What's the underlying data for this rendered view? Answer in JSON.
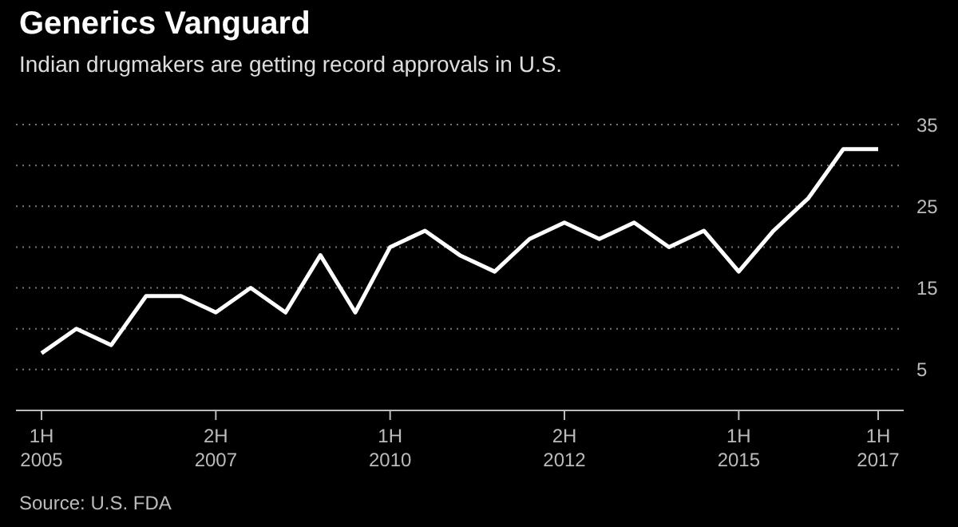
{
  "chart_data": {
    "type": "line",
    "title": "Generics Vanguard",
    "subtitle": "Indian drugmakers are getting record approvals in U.S.",
    "categories": [
      "1H 2005",
      null,
      null,
      null,
      null,
      "2H 2007",
      null,
      null,
      null,
      null,
      "1H 2010",
      null,
      null,
      null,
      null,
      "2H 2012",
      null,
      null,
      null,
      null,
      "1H 2015",
      null,
      null,
      null,
      "1H 2017"
    ],
    "series": [
      {
        "color": "#ffffff",
        "values": [
          7,
          10,
          8,
          14,
          14,
          12,
          15,
          12,
          19,
          12,
          20,
          22,
          19,
          17,
          21,
          23,
          21,
          23,
          20,
          22,
          17,
          22,
          26,
          32,
          32
        ]
      }
    ],
    "ylim": [
      0,
      35
    ],
    "yticks": [
      5,
      {
        "value": 10,
        "label": null
      },
      15,
      {
        "value": 20,
        "label": null
      },
      25,
      {
        "value": 30,
        "label": null
      },
      35
    ],
    "grid": "y",
    "legend": false,
    "marker": "none",
    "line_style": "solid",
    "annotations": [
      "Source: U.S. FDA"
    ]
  }
}
